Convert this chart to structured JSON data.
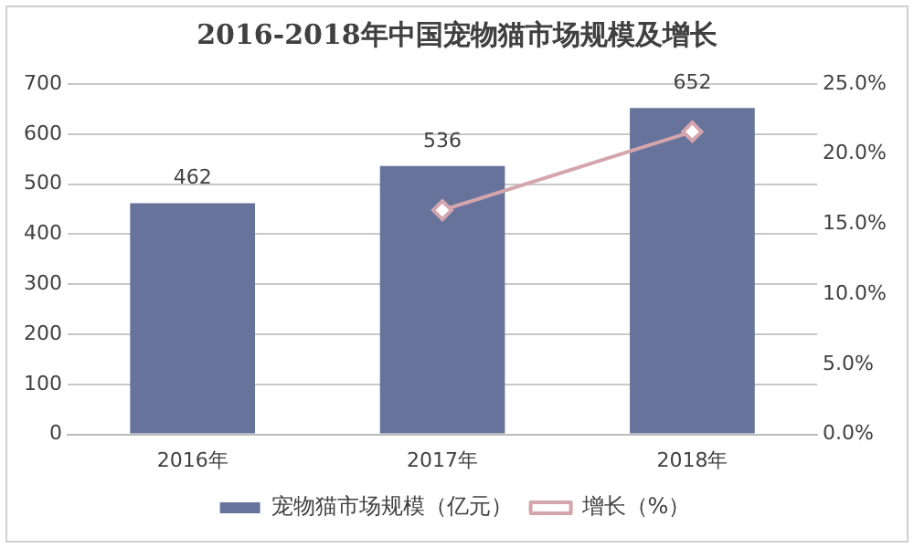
{
  "chart_data": {
    "type": "bar",
    "title": "2016-2018年中国宠物猫市场规模及增长",
    "categories": [
      "2016年",
      "2017年",
      "2018年"
    ],
    "series": [
      {
        "name": "宠物猫市场规模（亿元）",
        "color": "#67739a",
        "values": [
          462,
          536,
          652
        ],
        "value_labels": [
          "462",
          "536",
          "652"
        ]
      },
      {
        "name": "增长（%）",
        "type": "line",
        "axis": "y2",
        "color": "#d4a5ad",
        "values": [
          null,
          16.0,
          21.6
        ],
        "marker": "diamond"
      }
    ],
    "ylim": [
      0,
      700
    ],
    "yticks": [
      0,
      100,
      200,
      300,
      400,
      500,
      600,
      700
    ],
    "y2lim": [
      0,
      25
    ],
    "y2ticks": [
      {
        "value": 0,
        "label": "0.0%"
      },
      {
        "value": 5,
        "label": "5.0%"
      },
      {
        "value": 10,
        "label": "10.0%"
      },
      {
        "value": 15,
        "label": "15.0%"
      },
      {
        "value": 20,
        "label": "20.0%"
      },
      {
        "value": 25,
        "label": "25.0%"
      }
    ],
    "grid": "y",
    "legend": "bottom"
  }
}
